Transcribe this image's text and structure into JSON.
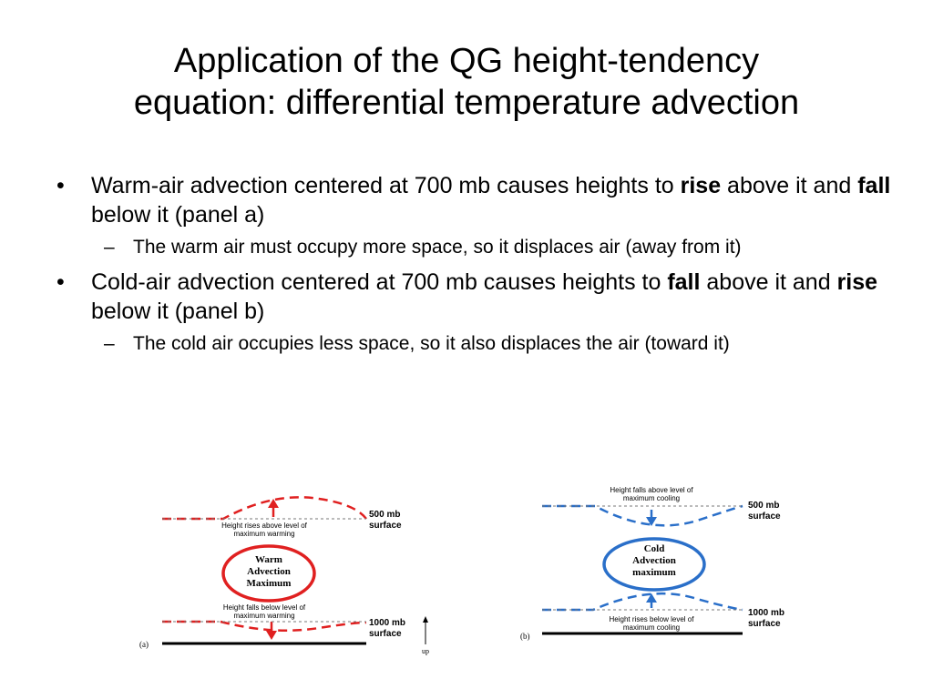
{
  "title_line1": "Application of the QG height-tendency",
  "title_line2": "equation: differential temperature advection",
  "bullet1": {
    "pre": "Warm-air advection centered at 700 mb causes heights to ",
    "bold1": "rise",
    "mid": " above it and ",
    "bold2": "fall",
    "post": " below it (panel a)"
  },
  "sub1": "The warm air must occupy more space, so it displaces air (away from it)",
  "bullet2": {
    "pre": "Cold-air advection centered at 700 mb causes heights to ",
    "bold1": "fall",
    "mid": " above it and ",
    "bold2": "rise",
    "post": " below it (panel b)"
  },
  "sub2": "The cold air occupies less space, so it also displaces the air (toward it)",
  "figure_a": {
    "top_surface_1": "500 mb",
    "top_surface_2": "surface",
    "rise_text_1": "Height rises above level of",
    "rise_text_2": "maximum warming",
    "center_1": "Warm",
    "center_2": "Advection",
    "center_3": "Maximum",
    "fall_text_1": "Height falls below level of",
    "fall_text_2": "maximum warming",
    "bottom_surface_1": "1000 mb",
    "bottom_surface_2": "surface",
    "panel_label": "(a)",
    "up_label": "up",
    "color": "#e02020"
  },
  "figure_b": {
    "top_text_1": "Height falls above level of",
    "top_text_2": "maximum cooling",
    "top_surface_1": "500 mb",
    "top_surface_2": "surface",
    "center_1": "Cold",
    "center_2": "Advection",
    "center_3": "maximum",
    "bottom_surface_1": "1000 mb",
    "bottom_surface_2": "surface",
    "bottom_text_1": "Height rises below level of",
    "bottom_text_2": "maximum cooling",
    "panel_label": "(b)",
    "color": "#2a6fc9"
  }
}
